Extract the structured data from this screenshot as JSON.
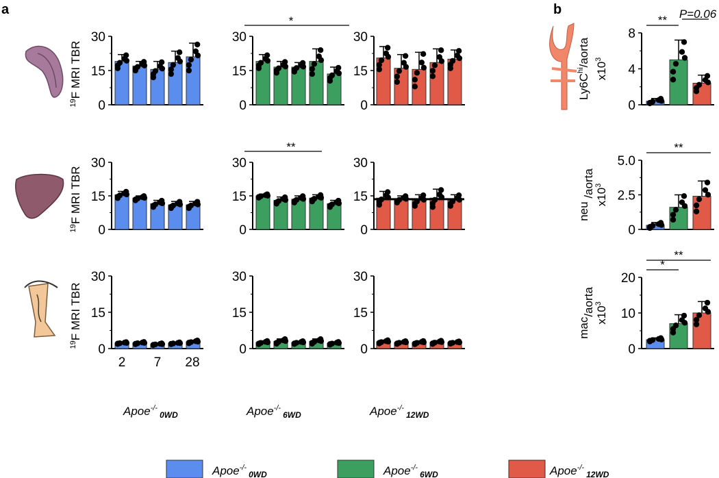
{
  "panel_letters": {
    "a": "a",
    "b": "b"
  },
  "colors": {
    "0WD": "#5b8def",
    "6WD": "#3d9f5f",
    "12WD": "#e05a47",
    "axis": "#000000"
  },
  "groups": [
    {
      "gene": "Apoe",
      "sup": "-/-",
      "sub": "0WD"
    },
    {
      "gene": "Apoe",
      "sup": "-/-",
      "sub": "6WD"
    },
    {
      "gene": "Apoe",
      "sup": "-/-",
      "sub": "12WD"
    }
  ],
  "row_ylabel": {
    "sup": "19",
    "text": "F MRI TBR"
  },
  "xticks": [
    "2",
    "7",
    "28"
  ],
  "chart_data": [
    {
      "type": "bar",
      "organ": "spleen",
      "ylim": [
        0,
        30
      ],
      "yticks": [
        "0",
        "15",
        "30"
      ],
      "series": [
        {
          "name": "0WD",
          "values": [
            19,
            17,
            15.5,
            18.5,
            21
          ],
          "sd": [
            3,
            2,
            3.5,
            5,
            6
          ]
        },
        {
          "name": "6WD",
          "values": [
            19,
            16.5,
            16.5,
            19,
            13.5
          ],
          "sd": [
            3,
            2.5,
            2,
            5.5,
            3
          ]
        },
        {
          "name": "12WD",
          "values": [
            20.5,
            16,
            15.5,
            18.5,
            20
          ],
          "sd": [
            5,
            6,
            7.5,
            6,
            4
          ]
        }
      ],
      "significance": [
        {
          "series": "6WD",
          "label": "*"
        }
      ]
    },
    {
      "type": "bar",
      "organ": "liver",
      "ylim": [
        0,
        30
      ],
      "yticks": [
        "0",
        "15",
        "30"
      ],
      "series": [
        {
          "name": "0WD",
          "values": [
            15.5,
            14,
            11.5,
            11,
            11
          ],
          "sd": [
            1.5,
            1,
            1.5,
            1.5,
            1.5
          ]
        },
        {
          "name": "6WD",
          "values": [
            15,
            13,
            13.5,
            14,
            11.5
          ],
          "sd": [
            0.8,
            1.5,
            1.5,
            1.5,
            1.5
          ]
        },
        {
          "name": "12WD",
          "values": [
            14,
            13.5,
            13,
            14,
            13
          ],
          "sd": [
            3,
            1.5,
            2.5,
            4,
            2.5
          ]
        }
      ],
      "reference_line": {
        "series": "12WD",
        "value": 13.5
      },
      "significance": [
        {
          "series": "6WD",
          "label": "**"
        }
      ]
    },
    {
      "type": "bar",
      "organ": "bone-marrow",
      "ylim": [
        0,
        30
      ],
      "yticks": [
        "0",
        "15",
        "30"
      ],
      "series": [
        {
          "name": "0WD",
          "values": [
            2.3,
            2.3,
            1.8,
            2.2,
            2.8
          ],
          "sd": [
            0.4,
            0.5,
            0.4,
            0.4,
            0.6
          ]
        },
        {
          "name": "6WD",
          "values": [
            2.5,
            3,
            2.5,
            3,
            2.2
          ],
          "sd": [
            0.7,
            1,
            0.6,
            1,
            0.6
          ]
        },
        {
          "name": "12WD",
          "values": [
            2.8,
            2.5,
            2.5,
            2.6,
            2.5
          ],
          "sd": [
            0.7,
            0.6,
            0.7,
            0.7,
            0.5
          ]
        }
      ]
    },
    {
      "type": "bar",
      "panel": "b",
      "ylabel": {
        "main": "Ly6C",
        "sup": "hi",
        "rest": "/aorta",
        "line2": "x10",
        "exp": "3"
      },
      "ylim": [
        0,
        8
      ],
      "yticks": [
        "0",
        "4",
        "8"
      ],
      "categories": [
        "0WD",
        "6WD",
        "12WD"
      ],
      "values": [
        0.4,
        5.0,
        2.4
      ],
      "sd": [
        0.3,
        2.2,
        0.9
      ],
      "significance": [
        {
          "pair": [
            0,
            1
          ],
          "label": "**"
        },
        {
          "pair": [
            1,
            2
          ],
          "label": "P=0.06"
        }
      ]
    },
    {
      "type": "bar",
      "panel": "b",
      "ylabel": {
        "main": "neu",
        "sup": "",
        "rest": " /aorta",
        "line2": "x10",
        "exp": "3"
      },
      "ylim": [
        0,
        5
      ],
      "yticks": [
        "0",
        "2.5",
        "5.0"
      ],
      "categories": [
        "0WD",
        "6WD",
        "12WD"
      ],
      "values": [
        0.3,
        1.6,
        2.4
      ],
      "sd": [
        0.2,
        0.9,
        1.1
      ],
      "significance": [
        {
          "pair": [
            0,
            2
          ],
          "label": "**"
        }
      ]
    },
    {
      "type": "bar",
      "panel": "b",
      "ylabel": {
        "main": "mac",
        "sup": "",
        "rest": "/aorta",
        "line2": "x10",
        "exp": "3"
      },
      "ylim": [
        0,
        20
      ],
      "yticks": [
        "0",
        "10",
        "20"
      ],
      "categories": [
        "0WD",
        "6WD",
        "12WD"
      ],
      "values": [
        2.5,
        7,
        10
      ],
      "sd": [
        0.5,
        2.5,
        3.2
      ],
      "significance": [
        {
          "pair": [
            0,
            1
          ],
          "label": "*"
        },
        {
          "pair": [
            0,
            2
          ],
          "label": "**"
        }
      ]
    }
  ],
  "legend": [
    {
      "gene": "Apoe",
      "sup": "-/-",
      "sub": "0WD",
      "color": "#5b8def"
    },
    {
      "gene": "Apoe",
      "sup": "-/-",
      "sub": "6WD",
      "color": "#3d9f5f"
    },
    {
      "gene": "Apoe",
      "sup": "-/-",
      "sub": "12WD",
      "color": "#e05a47"
    }
  ]
}
